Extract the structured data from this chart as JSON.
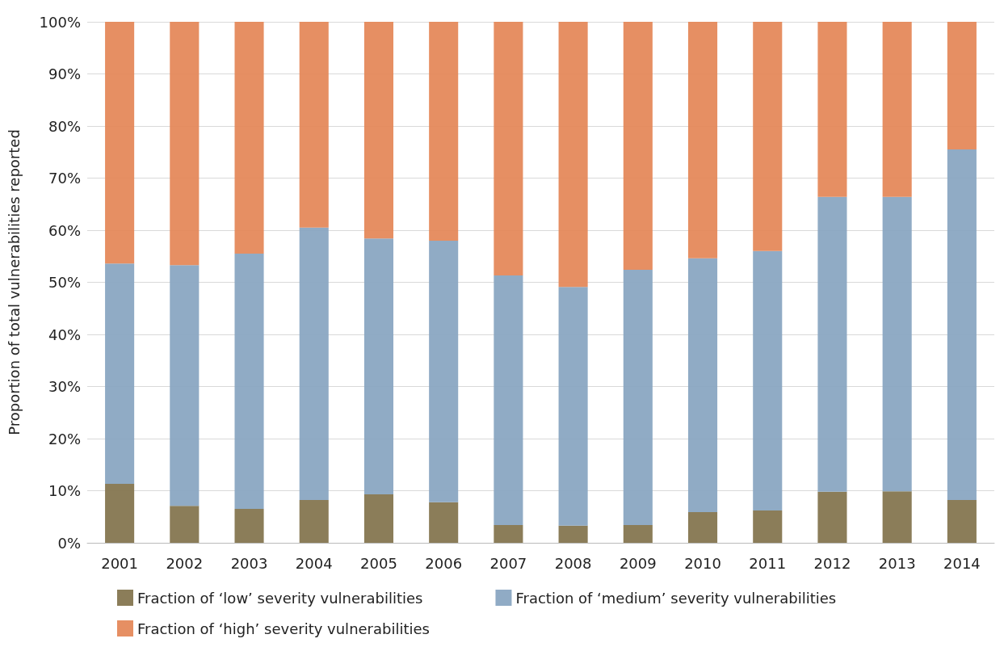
{
  "chart_data": {
    "type": "bar",
    "stacked": true,
    "ylabel": "Proportion of total vulnerabilities reported",
    "categories": [
      "2001",
      "2002",
      "2003",
      "2004",
      "2005",
      "2006",
      "2007",
      "2008",
      "2009",
      "2010",
      "2011",
      "2012",
      "2013",
      "2014"
    ],
    "series": [
      {
        "name": "Fraction of ‘low’ severity vulnerabilities",
        "color": "#857650",
        "values": [
          11.3,
          7.1,
          6.5,
          8.2,
          9.3,
          7.8,
          3.4,
          3.3,
          3.4,
          5.9,
          6.2,
          9.8,
          9.9,
          8.2
        ]
      },
      {
        "name": "Fraction of ‘medium’ severity vulnerabilities",
        "color": "#8aa7c2",
        "values": [
          42.3,
          46.2,
          49,
          52.3,
          49.1,
          50.2,
          47.9,
          45.8,
          49,
          48.7,
          49.8,
          56.6,
          56.5,
          67.3
        ]
      },
      {
        "name": "Fraction of ‘high’ severity vulnerabilities",
        "color": "#e5895b",
        "values": [
          46.4,
          46.7,
          44.5,
          39.5,
          41.6,
          42,
          48.7,
          50.9,
          47.6,
          45.4,
          44,
          33.6,
          33.6,
          24.5
        ]
      }
    ],
    "ylim": [
      0,
      100
    ],
    "yticks": [
      {
        "value": 0,
        "label": "0%"
      },
      {
        "value": 10,
        "label": "10%"
      },
      {
        "value": 20,
        "label": "20%"
      },
      {
        "value": 30,
        "label": "30%"
      },
      {
        "value": 40,
        "label": "40%"
      },
      {
        "value": 50,
        "label": "50%"
      },
      {
        "value": 60,
        "label": "60%"
      },
      {
        "value": 70,
        "label": "70%"
      },
      {
        "value": 80,
        "label": "80%"
      },
      {
        "value": 90,
        "label": "90%"
      },
      {
        "value": 100,
        "label": "100%"
      }
    ],
    "grid": "y",
    "legend": "bottom"
  }
}
